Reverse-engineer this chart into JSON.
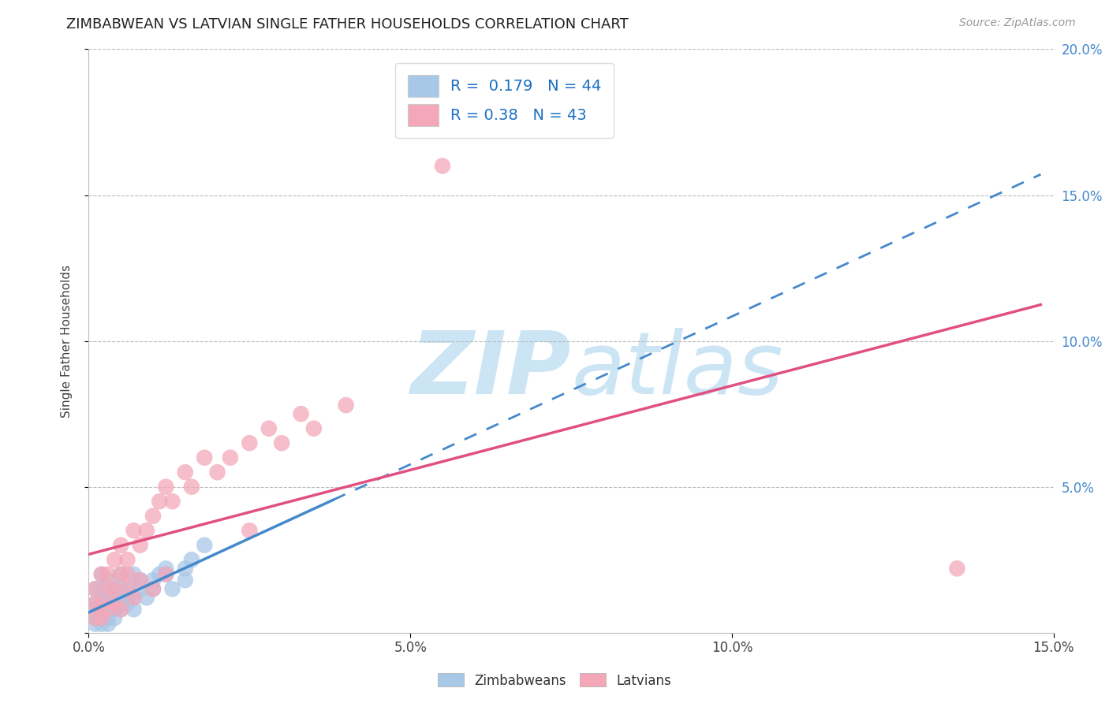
{
  "title": "ZIMBABWEAN VS LATVIAN SINGLE FATHER HOUSEHOLDS CORRELATION CHART",
  "source": "Source: ZipAtlas.com",
  "ylabel": "Single Father Households",
  "xlim": [
    0.0,
    0.15
  ],
  "ylim": [
    0.0,
    0.2
  ],
  "xticks": [
    0.0,
    0.05,
    0.1,
    0.15
  ],
  "yticks": [
    0.0,
    0.05,
    0.1,
    0.15,
    0.2
  ],
  "xtick_labels": [
    "0.0%",
    "5.0%",
    "10.0%",
    "15.0%"
  ],
  "ytick_labels_right": [
    "",
    "5.0%",
    "10.0%",
    "15.0%",
    "20.0%"
  ],
  "zim_R": 0.179,
  "zim_N": 44,
  "lat_R": 0.38,
  "lat_N": 43,
  "zim_color": "#a8c8e8",
  "lat_color": "#f4a7b9",
  "zim_line_color": "#4488cc",
  "lat_line_color": "#e05080",
  "watermark_color": "#cce5f5",
  "background_color": "#ffffff",
  "grid_color": "#bbbbbb",
  "title_color": "#222222",
  "source_color": "#999999",
  "ytick_color": "#4488cc",
  "xtick_color": "#444444",
  "ylabel_color": "#444444",
  "legend_text_color": "#1a6fc4",
  "zim_x": [
    0.001,
    0.001,
    0.001,
    0.002,
    0.002,
    0.002,
    0.002,
    0.003,
    0.003,
    0.003,
    0.003,
    0.004,
    0.004,
    0.004,
    0.005,
    0.005,
    0.005,
    0.006,
    0.006,
    0.007,
    0.007,
    0.008,
    0.009,
    0.01,
    0.011,
    0.012,
    0.013,
    0.015,
    0.016,
    0.018,
    0.001,
    0.001,
    0.002,
    0.002,
    0.003,
    0.003,
    0.004,
    0.005,
    0.006,
    0.007,
    0.008,
    0.01,
    0.012,
    0.015
  ],
  "zim_y": [
    0.005,
    0.01,
    0.015,
    0.005,
    0.01,
    0.015,
    0.02,
    0.005,
    0.008,
    0.012,
    0.018,
    0.008,
    0.012,
    0.015,
    0.01,
    0.015,
    0.02,
    0.01,
    0.015,
    0.012,
    0.02,
    0.015,
    0.012,
    0.018,
    0.02,
    0.022,
    0.015,
    0.018,
    0.025,
    0.03,
    0.003,
    0.008,
    0.003,
    0.008,
    0.003,
    0.01,
    0.005,
    0.008,
    0.012,
    0.008,
    0.018,
    0.015,
    0.02,
    0.022
  ],
  "lat_x": [
    0.001,
    0.001,
    0.002,
    0.002,
    0.003,
    0.003,
    0.004,
    0.004,
    0.005,
    0.005,
    0.006,
    0.006,
    0.007,
    0.008,
    0.009,
    0.01,
    0.011,
    0.012,
    0.013,
    0.015,
    0.016,
    0.018,
    0.02,
    0.022,
    0.025,
    0.028,
    0.03,
    0.033,
    0.035,
    0.04,
    0.001,
    0.002,
    0.003,
    0.004,
    0.005,
    0.006,
    0.007,
    0.008,
    0.01,
    0.012,
    0.025,
    0.055,
    0.135
  ],
  "lat_y": [
    0.01,
    0.015,
    0.01,
    0.02,
    0.015,
    0.02,
    0.015,
    0.025,
    0.02,
    0.03,
    0.02,
    0.025,
    0.035,
    0.03,
    0.035,
    0.04,
    0.045,
    0.05,
    0.045,
    0.055,
    0.05,
    0.06,
    0.055,
    0.06,
    0.065,
    0.07,
    0.065,
    0.075,
    0.07,
    0.078,
    0.005,
    0.005,
    0.008,
    0.01,
    0.008,
    0.015,
    0.012,
    0.018,
    0.015,
    0.02,
    0.035,
    0.16,
    0.022
  ]
}
